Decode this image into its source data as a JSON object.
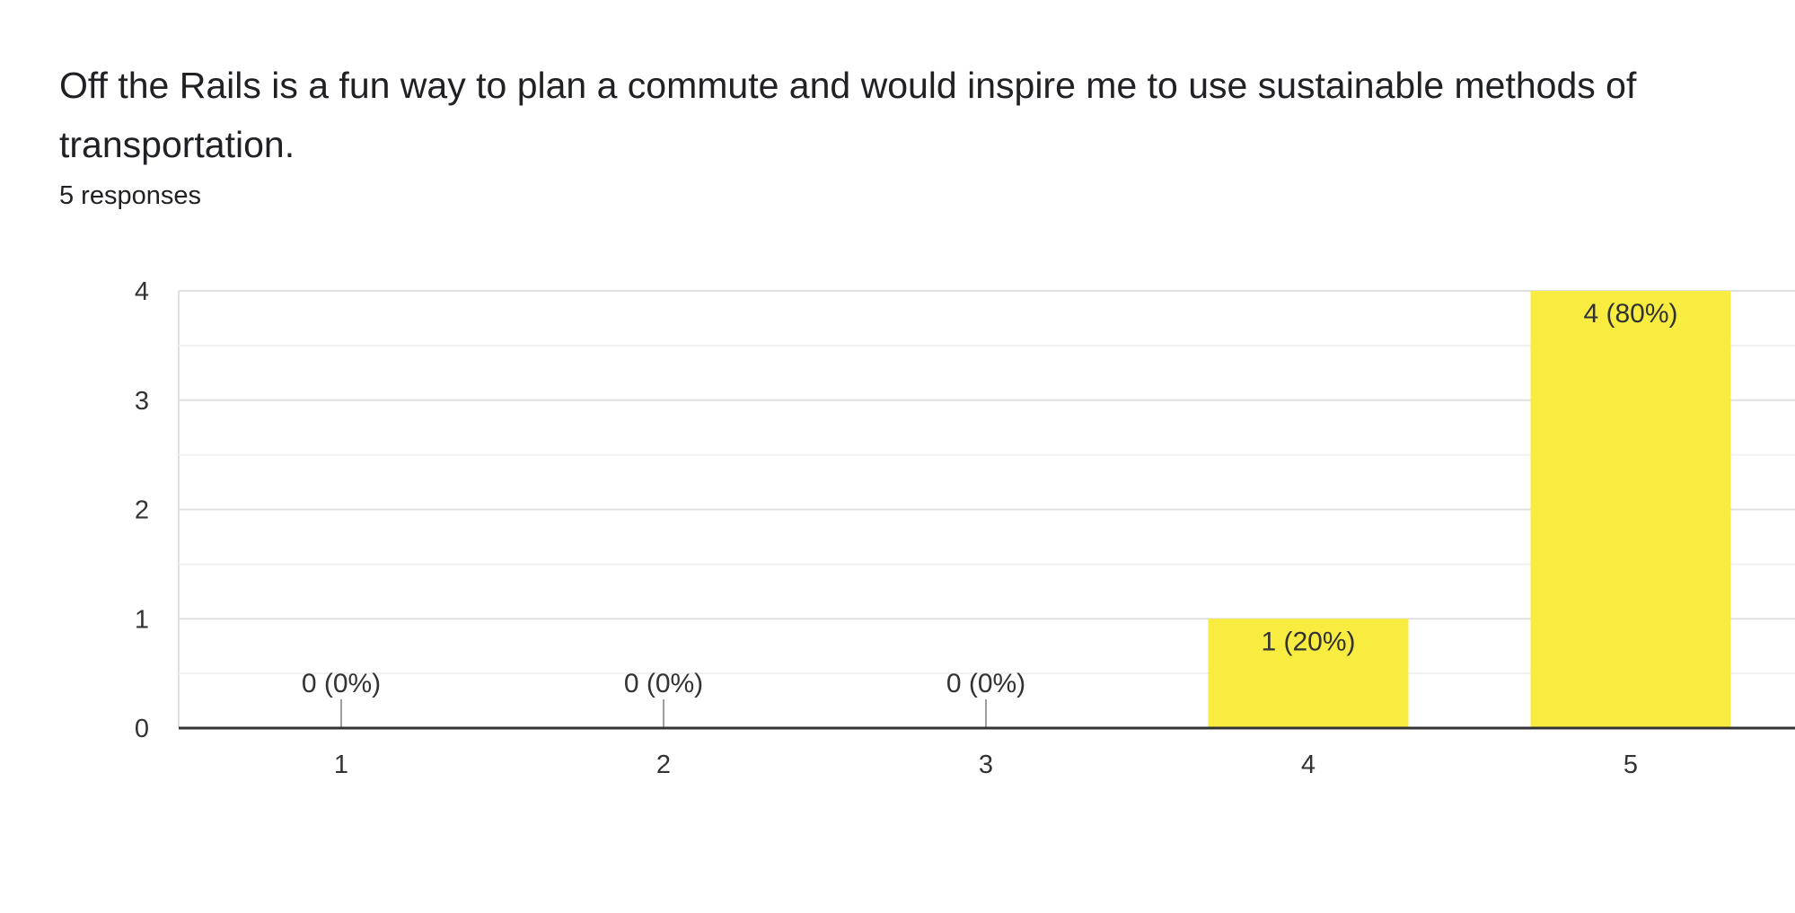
{
  "question": {
    "title": "Off the Rails is a fun way to plan a commute and would inspire me to use sustainable methods of transportation.",
    "responses_label": "5 responses"
  },
  "colors": {
    "bar": "#f9ec41",
    "axis": "#333333",
    "grid_major": "#e0e0e0",
    "grid_minor": "#f1f1f1",
    "text": "#333333",
    "zero_tick": "#9e9e9e"
  },
  "chart_data": {
    "type": "bar",
    "categories": [
      "1",
      "2",
      "3",
      "4",
      "5"
    ],
    "values": [
      0,
      0,
      0,
      1,
      4
    ],
    "data_labels": [
      "0 (0%)",
      "0 (0%)",
      "0 (0%)",
      "1 (20%)",
      "4 (80%)"
    ],
    "ylim": [
      0,
      4
    ],
    "y_ticks": [
      "0",
      "1",
      "2",
      "3",
      "4"
    ],
    "grid": true,
    "legend": "none",
    "title": "",
    "xlabel": "",
    "ylabel": ""
  }
}
